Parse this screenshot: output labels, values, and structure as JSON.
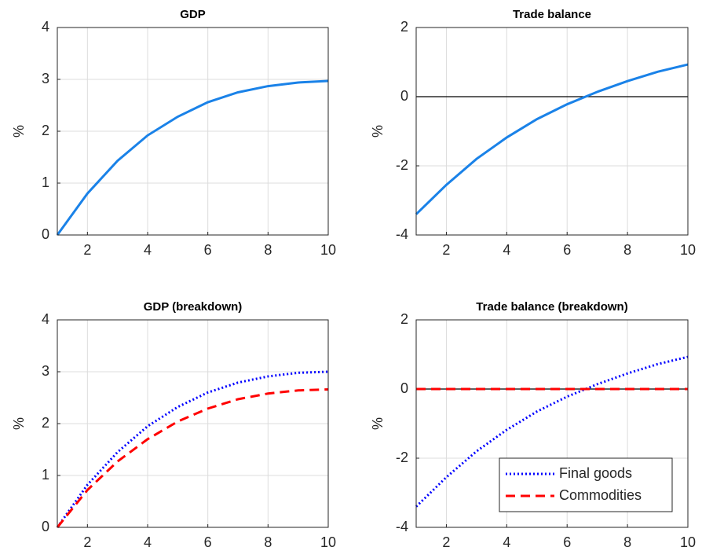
{
  "chart_data": [
    {
      "type": "line",
      "title": "GDP",
      "ylabel": "%",
      "x": [
        1,
        2,
        3,
        4,
        5,
        6,
        7,
        8,
        9,
        10
      ],
      "series": [
        {
          "color": "#1a82e8",
          "style": "solid",
          "values": [
            0,
            0.8,
            1.43,
            1.92,
            2.28,
            2.56,
            2.75,
            2.87,
            2.94,
            2.97
          ]
        }
      ],
      "xlim": [
        1,
        10
      ],
      "xticks": [
        2,
        4,
        6,
        8,
        10
      ],
      "ylim": [
        0,
        4
      ],
      "yticks": [
        0,
        1,
        2,
        3,
        4
      ],
      "grid": true,
      "zero_line": false
    },
    {
      "type": "line",
      "title": "Trade balance",
      "ylabel": "%",
      "x": [
        1,
        2,
        3,
        4,
        5,
        6,
        7,
        8,
        9,
        10
      ],
      "series": [
        {
          "color": "#1a82e8",
          "style": "solid",
          "values": [
            -3.4,
            -2.55,
            -1.8,
            -1.18,
            -0.65,
            -0.22,
            0.14,
            0.45,
            0.72,
            0.93
          ]
        }
      ],
      "xlim": [
        1,
        10
      ],
      "xticks": [
        2,
        4,
        6,
        8,
        10
      ],
      "ylim": [
        -4,
        2
      ],
      "yticks": [
        -4,
        -2,
        0,
        2
      ],
      "grid": true,
      "zero_line": true
    },
    {
      "type": "line",
      "title": "GDP (breakdown)",
      "ylabel": "%",
      "x": [
        1,
        2,
        3,
        4,
        5,
        6,
        7,
        8,
        9,
        10
      ],
      "series": [
        {
          "color": "#0000ff",
          "style": "dotted",
          "values": [
            0,
            0.82,
            1.45,
            1.95,
            2.32,
            2.6,
            2.79,
            2.91,
            2.98,
            3.0
          ]
        },
        {
          "color": "#ff0000",
          "style": "dashed",
          "values": [
            0,
            0.72,
            1.27,
            1.7,
            2.04,
            2.29,
            2.47,
            2.58,
            2.64,
            2.66
          ]
        }
      ],
      "xlim": [
        1,
        10
      ],
      "xticks": [
        2,
        4,
        6,
        8,
        10
      ],
      "ylim": [
        0,
        4
      ],
      "yticks": [
        0,
        1,
        2,
        3,
        4
      ],
      "grid": true,
      "zero_line": false
    },
    {
      "type": "line",
      "title": "Trade balance (breakdown)",
      "ylabel": "%",
      "x": [
        1,
        2,
        3,
        4,
        5,
        6,
        7,
        8,
        9,
        10
      ],
      "series": [
        {
          "name": "Final goods",
          "color": "#0000ff",
          "style": "dotted",
          "values": [
            -3.4,
            -2.55,
            -1.8,
            -1.18,
            -0.65,
            -0.22,
            0.14,
            0.45,
            0.72,
            0.93
          ]
        },
        {
          "name": "Commodities",
          "color": "#ff0000",
          "style": "dashed",
          "values": [
            0,
            0,
            0,
            0,
            0,
            0,
            0,
            0,
            0,
            0
          ]
        }
      ],
      "xlim": [
        1,
        10
      ],
      "xticks": [
        2,
        4,
        6,
        8,
        10
      ],
      "ylim": [
        -4,
        2
      ],
      "yticks": [
        -4,
        -2,
        0,
        2
      ],
      "grid": true,
      "zero_line": true,
      "legend": "lower right"
    }
  ]
}
